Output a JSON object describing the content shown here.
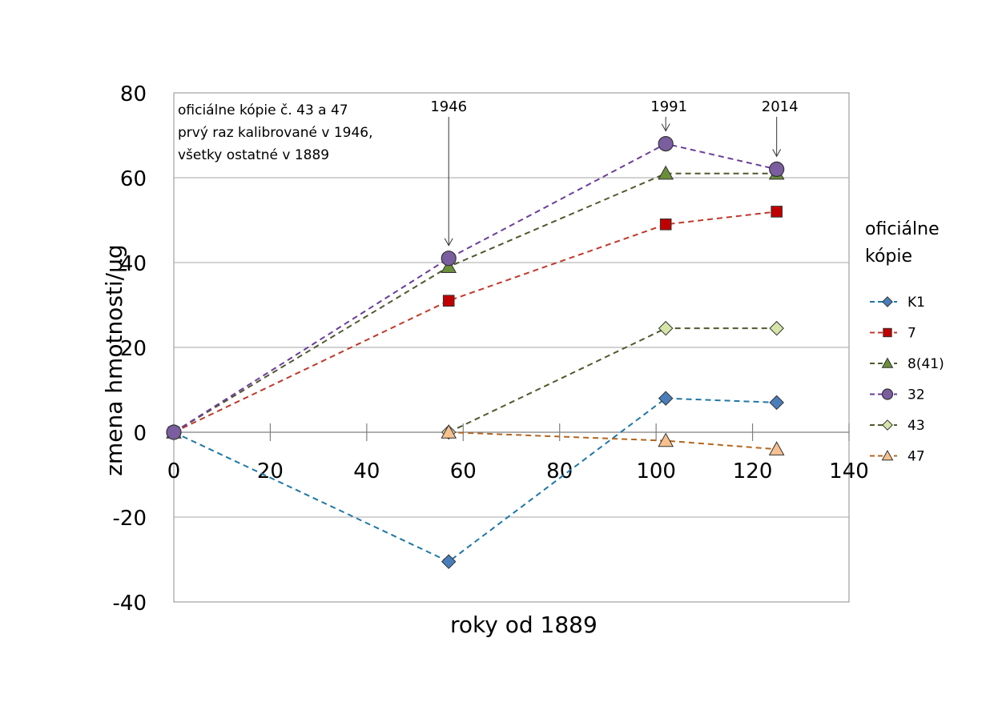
{
  "chart_data": {
    "type": "line",
    "title": "",
    "xlabel": "roky od 1889",
    "ylabel": "zmena hmotnosti/µg",
    "xlim": [
      0,
      140
    ],
    "ylim": [
      -40,
      80
    ],
    "x_ticks": [
      "0",
      "20",
      "40",
      "60",
      "80",
      "100",
      "120",
      "140"
    ],
    "y_ticks": [
      "80",
      "60",
      "40",
      "20",
      "0",
      "-20",
      "-40"
    ],
    "grid": "horizontal",
    "note_lines": [
      "oficiálne kópie č. 43 a 47",
      "prvý raz kalibrované v 1946,",
      "všetky ostatné v 1889"
    ],
    "annotations": [
      {
        "label": "1946",
        "x": 57,
        "y": 41
      },
      {
        "label": "1991",
        "x": 102,
        "y": 68
      },
      {
        "label": "2014",
        "x": 125,
        "y": 62
      }
    ],
    "legend_title_lines": [
      "oficiálne",
      "kópie"
    ],
    "series": [
      {
        "name": "K1",
        "marker": "diamond",
        "color": "#1f77a6",
        "fill": "#4a7ebb",
        "x": [
          0,
          57,
          102,
          125
        ],
        "y": [
          0,
          -30.5,
          8,
          7
        ]
      },
      {
        "name": "7",
        "marker": "square",
        "color": "#c0392b",
        "fill": "#c00000",
        "x": [
          0,
          57,
          102,
          125
        ],
        "y": [
          0,
          31,
          49,
          52
        ]
      },
      {
        "name": "8(41)",
        "marker": "triangle",
        "color": "#4f5a2e",
        "fill": "#6b8e3a",
        "x": [
          0,
          57,
          102,
          125
        ],
        "y": [
          0,
          39,
          61,
          61
        ]
      },
      {
        "name": "32",
        "marker": "circle",
        "color": "#6a3d9a",
        "fill": "#7a5ea0",
        "x": [
          0,
          57,
          102,
          125
        ],
        "y": [
          0,
          41,
          68,
          62
        ]
      },
      {
        "name": "43",
        "marker": "diamond",
        "color": "#4f5a2e",
        "fill": "#d7e4a8",
        "x": [
          57,
          102,
          125
        ],
        "y": [
          0,
          24.5,
          24.5
        ]
      },
      {
        "name": "47",
        "marker": "triangle",
        "color": "#b5651d",
        "fill": "#f6c08f",
        "x": [
          57,
          102,
          125
        ],
        "y": [
          0,
          -2,
          -4
        ]
      }
    ]
  }
}
